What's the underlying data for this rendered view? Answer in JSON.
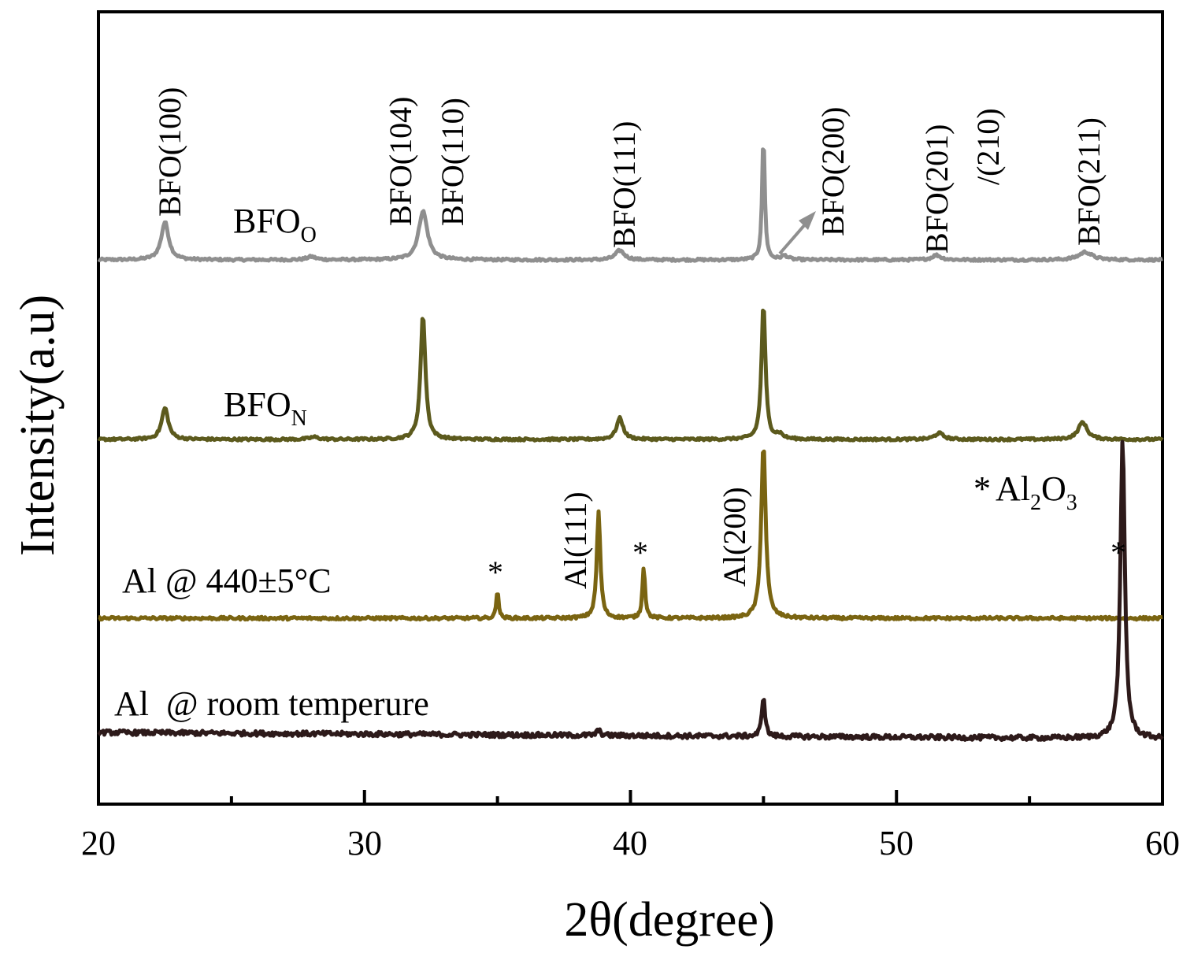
{
  "chart_data": {
    "type": "line",
    "xlabel": "2θ(degree)",
    "ylabel": "Intensity(a.u)",
    "xlim": [
      20,
      60
    ],
    "x_ticks": [
      "20",
      "30",
      "40",
      "50",
      "60"
    ],
    "x_minor_ticks": [
      25,
      35,
      45,
      55
    ],
    "grid": false,
    "y_ticks_shown": false,
    "series": [
      {
        "name": "BFO",
        "name_sub": "O",
        "color": "#8f8f8f",
        "noise": 1.5,
        "baseline": [
          [
            20,
            0
          ],
          [
            60,
            0
          ]
        ],
        "peaks": [
          {
            "x": 22.5,
            "h": 48,
            "w": 0.17
          },
          {
            "x": 28.0,
            "h": 4,
            "w": 0.2
          },
          {
            "x": 32.2,
            "h": 62,
            "w": 0.2
          },
          {
            "x": 39.6,
            "h": 12,
            "w": 0.2
          },
          {
            "x": 45.0,
            "h": 158,
            "w": 0.06
          },
          {
            "x": 45.8,
            "h": 5,
            "w": 0.15
          },
          {
            "x": 51.5,
            "h": 6,
            "w": 0.2
          },
          {
            "x": 57.1,
            "h": 10,
            "w": 0.3
          }
        ]
      },
      {
        "name": "BFO",
        "name_sub": "N",
        "color": "#5c5a1d",
        "noise": 1.5,
        "baseline": [
          [
            20,
            0
          ],
          [
            60,
            0
          ]
        ],
        "peaks": [
          {
            "x": 22.5,
            "h": 40,
            "w": 0.15
          },
          {
            "x": 28.1,
            "h": 3,
            "w": 0.2
          },
          {
            "x": 32.2,
            "h": 158,
            "w": 0.11
          },
          {
            "x": 39.6,
            "h": 27,
            "w": 0.15
          },
          {
            "x": 45.0,
            "h": 172,
            "w": 0.09
          },
          {
            "x": 45.6,
            "h": 6,
            "w": 0.15
          },
          {
            "x": 51.6,
            "h": 8,
            "w": 0.2
          },
          {
            "x": 57.0,
            "h": 22,
            "w": 0.2
          }
        ]
      },
      {
        "name": "Al @ 440±5°C",
        "color": "#7a6411",
        "noise": 1.8,
        "baseline": [
          [
            20,
            0
          ],
          [
            60,
            0
          ]
        ],
        "peaks": [
          {
            "x": 35.0,
            "h": 38,
            "w": 0.05
          },
          {
            "x": 38.8,
            "h": 135,
            "w": 0.08
          },
          {
            "x": 40.5,
            "h": 66,
            "w": 0.06
          },
          {
            "x": 45.0,
            "h": 222,
            "w": 0.1
          }
        ]
      },
      {
        "name": "Al  @ room temperure",
        "color": "#2d1a1a",
        "noise": 3.0,
        "baseline": [
          [
            20,
            8
          ],
          [
            60,
            0
          ]
        ],
        "peaks": [
          {
            "x": 38.8,
            "h": 6,
            "w": 0.1
          },
          {
            "x": 45.0,
            "h": 52,
            "w": 0.07
          },
          {
            "x": 58.5,
            "h": 380,
            "w": 0.1
          }
        ]
      }
    ],
    "annotations": [
      {
        "text": "BFO(100)",
        "x": 22.8
      },
      {
        "text": "BFO(104)",
        "x": 31.6
      },
      {
        "text": "BFO(110)",
        "x": 33.5
      },
      {
        "text": "BFO(111)",
        "x": 40.1
      },
      {
        "text": "BFO(200)",
        "x": 47.3
      },
      {
        "text": "BFO(201)",
        "x": 51.3
      },
      {
        "text": "/(210)",
        "x": 53.2
      },
      {
        "text": "BFO(211)",
        "x": 57.1
      },
      {
        "text": "Al(111)",
        "x": 38.2
      },
      {
        "text": "Al(200)",
        "x": 44.1
      },
      {
        "text": "*",
        "x": 35.0
      },
      {
        "text": "*",
        "x": 40.4
      },
      {
        "text": "*",
        "x": 58.3
      },
      {
        "text": "*",
        "x": 53.6
      },
      {
        "text": "Al",
        "x": 55.0
      }
    ],
    "legend_note": {
      "marker": "*",
      "text": "Al",
      "sub1": "2",
      "mid": "O",
      "sub2": "3"
    }
  }
}
